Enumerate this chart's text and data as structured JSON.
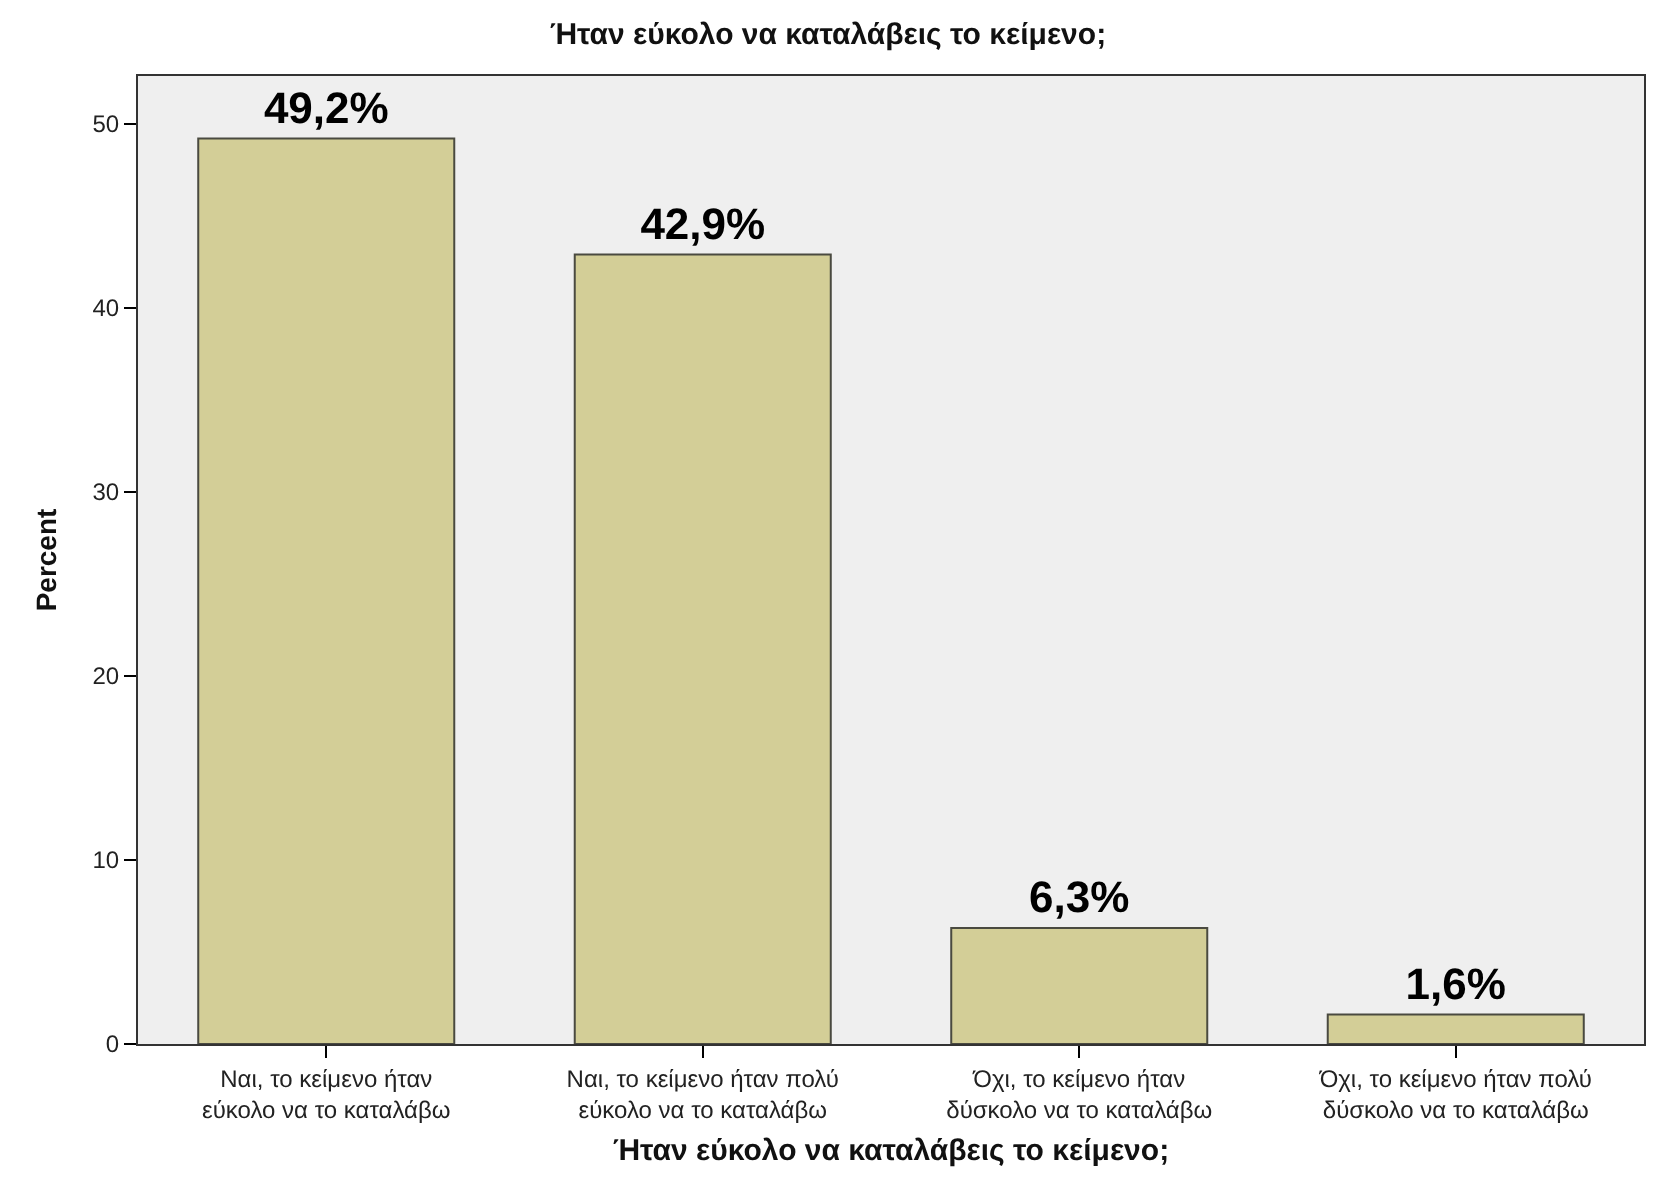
{
  "chart_data": {
    "type": "bar",
    "title": "Ήταν εύκολο να καταλάβεις το κείμενο;",
    "xlabel": "Ήταν εύκολο να καταλάβεις το κείμενο;",
    "ylabel": "Percent",
    "categories": [
      "Ναι, το κείμενο ήταν εύκολο να το καταλάβω",
      "Ναι, το κείμενο ήταν πολύ εύκολο να το καταλάβω",
      "Όχι, το κείμενο ήταν δύσκολο να το καταλάβω",
      "Όχι, το κείμενο ήταν πολύ δύσκολο να το καταλάβω"
    ],
    "values": [
      49.2,
      42.9,
      6.3,
      1.6
    ],
    "value_labels": [
      "49,2%",
      "42,9%",
      "6,3%",
      "1,6%"
    ],
    "color": "#d3ce97",
    "ylim": [
      0,
      52.6
    ],
    "yticks": [
      0,
      10,
      20,
      30,
      40,
      50
    ],
    "grid": false
  }
}
